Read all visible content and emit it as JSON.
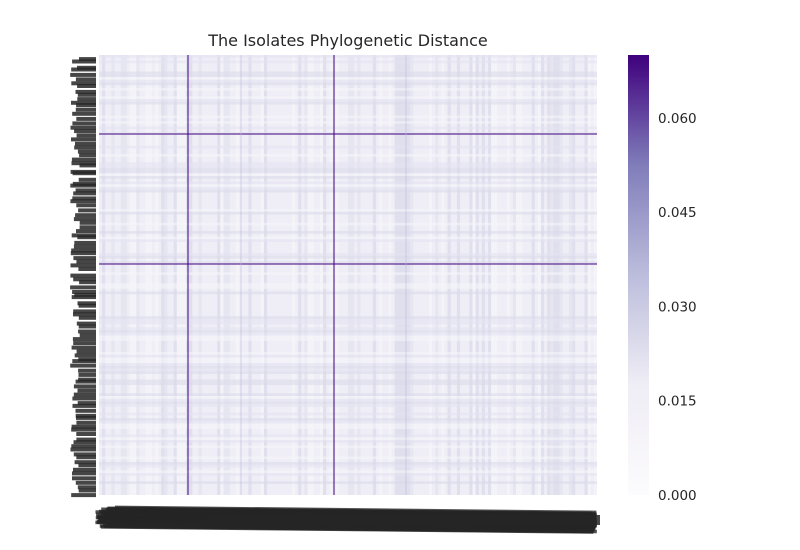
{
  "chart_data": {
    "type": "heatmap",
    "title": "The Isolates Phylogenetic Distance",
    "xlabel": "",
    "ylabel": "",
    "colormap": "Purples",
    "colors": {
      "low": "#fcfbfd",
      "mid": "#bcbddc",
      "high": "#3f007d",
      "label": "#262626"
    },
    "color_range": [
      0.0,
      0.07
    ],
    "colorbar_ticks": [
      "0.000",
      "0.015",
      "0.030",
      "0.045",
      "0.060"
    ],
    "colorbar_tick_values": [
      0.0,
      0.015,
      0.03,
      0.045,
      0.06
    ],
    "row_labels_legible": false,
    "column_labels_legible": false,
    "matrix_note_values": {
      "typical_distance": 0.006,
      "outlier_isolate_distance": 0.07
    }
  }
}
